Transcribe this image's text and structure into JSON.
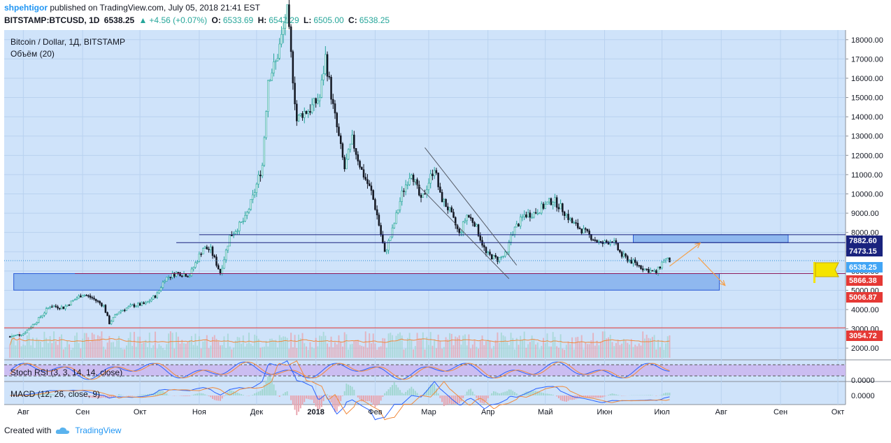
{
  "header": {
    "author": "shpehtigor",
    "published_text": "published on TradingView.com, July 05, 2018 21:41 EST",
    "symbol": "BITSTAMP:BTCUSD, 1D",
    "last": "6538.25",
    "change_arrow": "▲",
    "change": "+4.56 (+0.07%)",
    "o_label": "O:",
    "o_value": "6533.69",
    "h_label": "H:",
    "h_value": "6547.29",
    "l_label": "L:",
    "l_value": "6505.00",
    "c_label": "C:",
    "c_value": "6538.25"
  },
  "legend": {
    "title": "Bitcoin / Dollar, 1Д, BITSTAMP",
    "volume": "Объём (20)",
    "stoch": "Stoch RSI (3, 3, 14, 14, close)",
    "macd": "MACD (12, 26, close, 9)"
  },
  "footer": {
    "created_with": "Created with",
    "brand": "TradingView"
  },
  "colors": {
    "background": "#cfe3fa",
    "bull": "#26a69a",
    "bear": "#131722",
    "zone": "#8fb8ef",
    "price_label_red": "#e53935",
    "price_label_navy": "#1a237e",
    "price_label_blue": "#42a5f5",
    "arrow": "#f5a04a",
    "stoch_band": "#c9b3ef",
    "brand_blue": "#2196f3"
  },
  "chart_data": {
    "type": "candlestick",
    "x_axis_labels": [
      "Авг",
      "Сен",
      "Окт",
      "Ноя",
      "Дек",
      "2018",
      "Фев",
      "Мар",
      "Апр",
      "Май",
      "Июн",
      "Июл",
      "Авг",
      "Сен",
      "Окт"
    ],
    "y_ticks": [
      2000,
      3000,
      4000,
      5000,
      6000,
      7000,
      8000,
      9000,
      10000,
      11000,
      12000,
      13000,
      14000,
      15000,
      16000,
      17000,
      18000
    ],
    "y_tick_labels": [
      "2000.00",
      "3000.00",
      "4000.00",
      "5000.00",
      "6000.00",
      "7000.00",
      "8000.00",
      "9000.00",
      "10000.00",
      "11000.00",
      "12000.00",
      "13000.00",
      "14000.00",
      "15000.00",
      "16000.00",
      "17000.00",
      "18000.00"
    ],
    "ylim": [
      1500,
      18500
    ],
    "close_series": [
      {
        "date": "2017-07-25",
        "value": 2600
      },
      {
        "date": "2017-08-01",
        "value": 2750
      },
      {
        "date": "2017-08-08",
        "value": 3400
      },
      {
        "date": "2017-08-15",
        "value": 4200
      },
      {
        "date": "2017-08-22",
        "value": 4100
      },
      {
        "date": "2017-08-29",
        "value": 4600
      },
      {
        "date": "2017-09-01",
        "value": 4800
      },
      {
        "date": "2017-09-06",
        "value": 4600
      },
      {
        "date": "2017-09-12",
        "value": 4200
      },
      {
        "date": "2017-09-15",
        "value": 3300
      },
      {
        "date": "2017-09-20",
        "value": 3900
      },
      {
        "date": "2017-09-27",
        "value": 4200
      },
      {
        "date": "2017-10-04",
        "value": 4300
      },
      {
        "date": "2017-10-10",
        "value": 4800
      },
      {
        "date": "2017-10-14",
        "value": 5600
      },
      {
        "date": "2017-10-20",
        "value": 5900
      },
      {
        "date": "2017-10-27",
        "value": 5800
      },
      {
        "date": "2017-11-03",
        "value": 7200
      },
      {
        "date": "2017-11-07",
        "value": 7100
      },
      {
        "date": "2017-11-12",
        "value": 5900
      },
      {
        "date": "2017-11-17",
        "value": 7800
      },
      {
        "date": "2017-11-25",
        "value": 8700
      },
      {
        "date": "2017-11-29",
        "value": 9800
      },
      {
        "date": "2017-12-04",
        "value": 11500
      },
      {
        "date": "2017-12-07",
        "value": 16000
      },
      {
        "date": "2017-12-11",
        "value": 16800
      },
      {
        "date": "2017-12-17",
        "value": 19400
      },
      {
        "date": "2017-12-22",
        "value": 13800
      },
      {
        "date": "2017-12-25",
        "value": 14200
      },
      {
        "date": "2017-12-29",
        "value": 14400
      },
      {
        "date": "2018-01-03",
        "value": 15000
      },
      {
        "date": "2018-01-06",
        "value": 17100
      },
      {
        "date": "2018-01-10",
        "value": 14500
      },
      {
        "date": "2018-01-16",
        "value": 11300
      },
      {
        "date": "2018-01-20",
        "value": 12800
      },
      {
        "date": "2018-01-25",
        "value": 11200
      },
      {
        "date": "2018-01-30",
        "value": 10100
      },
      {
        "date": "2018-02-02",
        "value": 8900
      },
      {
        "date": "2018-02-06",
        "value": 6900
      },
      {
        "date": "2018-02-10",
        "value": 8100
      },
      {
        "date": "2018-02-15",
        "value": 10000
      },
      {
        "date": "2018-02-20",
        "value": 11200
      },
      {
        "date": "2018-02-25",
        "value": 9600
      },
      {
        "date": "2018-03-04",
        "value": 11400
      },
      {
        "date": "2018-03-07",
        "value": 9900
      },
      {
        "date": "2018-03-12",
        "value": 9100
      },
      {
        "date": "2018-03-17",
        "value": 7900
      },
      {
        "date": "2018-03-21",
        "value": 8900
      },
      {
        "date": "2018-03-25",
        "value": 8500
      },
      {
        "date": "2018-03-31",
        "value": 6900
      },
      {
        "date": "2018-04-06",
        "value": 6600
      },
      {
        "date": "2018-04-11",
        "value": 6900
      },
      {
        "date": "2018-04-13",
        "value": 7900
      },
      {
        "date": "2018-04-20",
        "value": 8900
      },
      {
        "date": "2018-04-25",
        "value": 9000
      },
      {
        "date": "2018-05-05",
        "value": 9700
      },
      {
        "date": "2018-05-10",
        "value": 9200
      },
      {
        "date": "2018-05-15",
        "value": 8500
      },
      {
        "date": "2018-05-22",
        "value": 8000
      },
      {
        "date": "2018-05-30",
        "value": 7400
      },
      {
        "date": "2018-06-05",
        "value": 7600
      },
      {
        "date": "2018-06-10",
        "value": 6800
      },
      {
        "date": "2018-06-15",
        "value": 6500
      },
      {
        "date": "2018-06-22",
        "value": 6100
      },
      {
        "date": "2018-06-28",
        "value": 5900
      },
      {
        "date": "2018-07-02",
        "value": 6600
      },
      {
        "date": "2018-07-05",
        "value": 6538.25
      }
    ],
    "price_labels": [
      {
        "value": 7882.6,
        "text": "7882.60",
        "style": "navy"
      },
      {
        "value": 7473.15,
        "text": "7473.15",
        "style": "navy"
      },
      {
        "value": 6538.25,
        "text": "6538.25",
        "style": "blue"
      },
      {
        "value": 5866.38,
        "text": "5866.38",
        "style": "red"
      },
      {
        "value": 5006.87,
        "text": "5006.87",
        "style": "red"
      },
      {
        "value": 3054.72,
        "text": "3054.72",
        "style": "red"
      }
    ],
    "horizontal_lines": [
      7882.6,
      7473.15,
      5866.38,
      3054.72
    ],
    "support_zone": {
      "top": 5866.38,
      "bottom": 5006.87,
      "start": "2017-07-27",
      "end": "2018-07-31"
    },
    "resistance_zone": {
      "top": 7882.6,
      "bottom": 7473.15,
      "start": "2018-06-16",
      "end": "2018-09-05"
    },
    "trend_lines": [
      {
        "start": {
          "date": "2018-02-27",
          "value": 12400
        },
        "end": {
          "date": "2018-04-16",
          "value": 6300
        }
      },
      {
        "start": {
          "date": "2018-02-20",
          "value": 10800
        },
        "end": {
          "date": "2018-04-12",
          "value": 5600
        }
      }
    ],
    "arrows": [
      {
        "start": {
          "date": "2018-07-05",
          "value": 6250
        },
        "end": {
          "date": "2018-07-21",
          "value": 7450
        }
      },
      {
        "start": {
          "date": "2018-07-20",
          "value": 6700
        },
        "end": {
          "date": "2018-08-03",
          "value": 5250
        }
      }
    ],
    "stoch_rsi": {
      "label": "Stoch RSI (3, 3, 14, 14, close)",
      "band": [
        20,
        80
      ]
    },
    "macd": {
      "label": "MACD (12, 26, close, 9)",
      "tick_label": "0.0000"
    },
    "stoch_tick_label": "0.0000"
  }
}
